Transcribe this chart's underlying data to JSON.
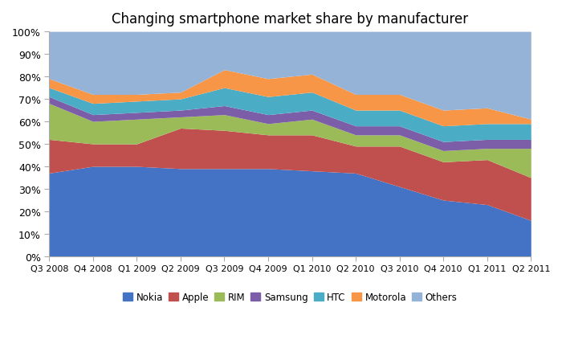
{
  "title": "Changing smartphone market share by manufacturer",
  "quarters": [
    "Q3 2008",
    "Q4 2008",
    "Q1 2009",
    "Q2 2009",
    "Q3 2009",
    "Q4 2009",
    "Q1 2010",
    "Q2 2010",
    "Q3 2010",
    "Q4 2010",
    "Q1 2011",
    "Q2 2011"
  ],
  "series": {
    "Nokia": [
      37,
      40,
      40,
      39,
      39,
      39,
      38,
      37,
      31,
      25,
      23,
      16
    ],
    "Apple": [
      15,
      10,
      10,
      18,
      17,
      15,
      16,
      12,
      18,
      17,
      20,
      19
    ],
    "RIM": [
      16,
      10,
      11,
      5,
      7,
      5,
      7,
      5,
      5,
      5,
      5,
      13
    ],
    "Samsung": [
      3,
      3,
      3,
      3,
      4,
      4,
      4,
      4,
      4,
      4,
      4,
      4
    ],
    "HTC": [
      4,
      5,
      5,
      5,
      8,
      8,
      8,
      7,
      7,
      7,
      7,
      7
    ],
    "Motorola": [
      4,
      4,
      3,
      3,
      8,
      8,
      8,
      7,
      7,
      7,
      7,
      2
    ],
    "Others": [
      21,
      28,
      28,
      27,
      17,
      21,
      19,
      28,
      28,
      35,
      34,
      39
    ]
  },
  "colors": {
    "Nokia": "#4472C4",
    "Apple": "#C0504D",
    "RIM": "#9BBB59",
    "Samsung": "#7B5EA7",
    "HTC": "#4BACC6",
    "Motorola": "#F79646",
    "Others": "#95B3D7"
  },
  "figsize": [
    7.0,
    4.39
  ],
  "dpi": 100
}
